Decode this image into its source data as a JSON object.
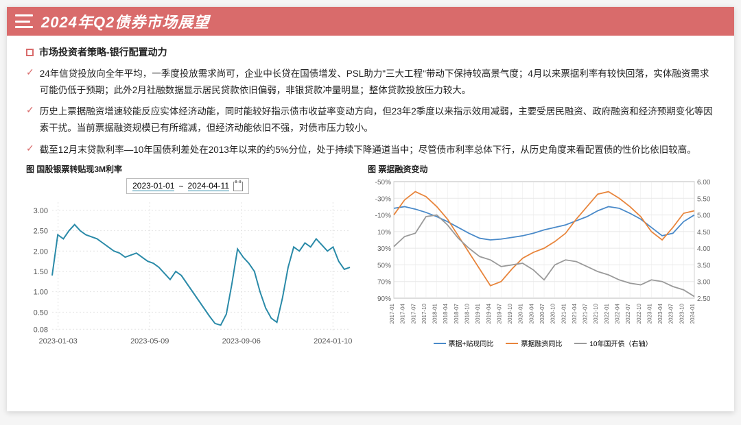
{
  "header": {
    "title": "2024年Q2债券市场展望"
  },
  "subtitle": "市场投资者策略-银行配置动力",
  "bullets": [
    "24年信贷投放向全年平均，一季度投放需求尚可，企业中长贷在国债增发、PSL助力\"三大工程\"带动下保持较高景气度；4月以来票据利率有较快回落，实体融资需求可能仍低于预期；此外2月社融数据显示居民贷款依旧偏弱，非银贷款冲量明显；整体贷款投放压力较大。",
    "历史上票据融资增速较能反应实体经济动能，同时能较好指示债市收益率变动方向，但23年2季度以来指示效用减弱，主要受居民融资、政府融资和经济预期变化等因素干扰。当前票据融资规模已有所缩减，但经济动能依旧不强，对债市压力较小。",
    "截至12月末贷款利率—10年国债利差处在2013年以来的约5%分位，处于持续下降通道当中；尽管债市利率总体下行，从历史角度来看配置债的性价比依旧较高。"
  ],
  "chart1": {
    "title": "图 国股银票转贴现3M利率",
    "type": "line",
    "date_range": {
      "start": "2023-01-01",
      "end": "2024-04-11"
    },
    "x_labels": [
      "2023-01-03",
      "2023-05-09",
      "2023-09-06",
      "2024-01-10"
    ],
    "ylim": [
      0,
      3.2
    ],
    "y_ticks": [
      0.08,
      0.5,
      1.0,
      1.5,
      2.0,
      2.5,
      3.0
    ],
    "line_color": "#2a8aa8",
    "grid_color": "#e2e2e2",
    "background": "#ffffff",
    "data": [
      1.4,
      2.4,
      2.3,
      2.5,
      2.65,
      2.5,
      2.4,
      2.35,
      2.3,
      2.2,
      2.1,
      2.0,
      1.95,
      1.85,
      1.9,
      1.95,
      1.85,
      1.75,
      1.7,
      1.6,
      1.45,
      1.3,
      1.5,
      1.4,
      1.2,
      1.0,
      0.8,
      0.6,
      0.4,
      0.22,
      0.18,
      0.45,
      1.2,
      2.05,
      1.85,
      1.7,
      1.5,
      1.0,
      0.6,
      0.35,
      0.25,
      0.85,
      1.6,
      2.1,
      2.0,
      2.2,
      2.1,
      2.3,
      2.15,
      2.0,
      2.1,
      1.75,
      1.55,
      1.6
    ]
  },
  "chart2": {
    "title": "图 票据融资变动",
    "type": "multi-line",
    "background": "#ffffff",
    "grid_color": "#e8e8e8",
    "y_left": {
      "ticks": [
        -50,
        -30,
        -10,
        10,
        30,
        50,
        70,
        90
      ],
      "reversed": false,
      "fmt": "%"
    },
    "y_right": {
      "ticks": [
        2.5,
        3.0,
        3.5,
        4.0,
        4.5,
        5.0,
        5.5,
        6.0
      ],
      "reversed": false
    },
    "x_labels": [
      "2017-01",
      "2017-04",
      "2017-07",
      "2017-10",
      "2018-01",
      "2018-04",
      "2018-07",
      "2018-10",
      "2019-01",
      "2019-04",
      "2019-07",
      "2019-10",
      "2020-01",
      "2020-04",
      "2020-07",
      "2020-10",
      "2021-01",
      "2021-04",
      "2021-07",
      "2021-10",
      "2022-01",
      "2022-04",
      "2022-07",
      "2022-10",
      "2023-01",
      "2023-04",
      "2023-07",
      "2023-10",
      "2024-01"
    ],
    "series": [
      {
        "name": "票据+贴现同比",
        "color": "#4a8ac9",
        "data": [
          -18,
          -20,
          -17,
          -13,
          -8,
          -2,
          5,
          12,
          18,
          20,
          19,
          17,
          15,
          12,
          8,
          5,
          2,
          -3,
          -8,
          -15,
          -20,
          -18,
          -12,
          -5,
          5,
          15,
          12,
          -2,
          -10
        ]
      },
      {
        "name": "票据融资同比",
        "color": "#e8853c",
        "data": [
          -10,
          -28,
          -38,
          -32,
          -20,
          -5,
          15,
          35,
          55,
          75,
          70,
          55,
          42,
          35,
          30,
          22,
          12,
          -5,
          -20,
          -35,
          -38,
          -30,
          -20,
          -8,
          10,
          20,
          5,
          -12,
          -15
        ]
      },
      {
        "name": "10年国开债（右轴）",
        "color": "#9a9a9a",
        "axis": "right",
        "data": [
          4.05,
          4.35,
          4.45,
          4.95,
          5.0,
          4.7,
          4.3,
          4.0,
          3.75,
          3.65,
          3.45,
          3.5,
          3.55,
          3.35,
          3.05,
          3.5,
          3.65,
          3.6,
          3.45,
          3.3,
          3.2,
          3.05,
          2.95,
          2.9,
          3.05,
          3.0,
          2.85,
          2.75,
          2.55
        ]
      }
    ]
  },
  "colors": {
    "brand": "#d96b6b",
    "text": "#222222"
  }
}
